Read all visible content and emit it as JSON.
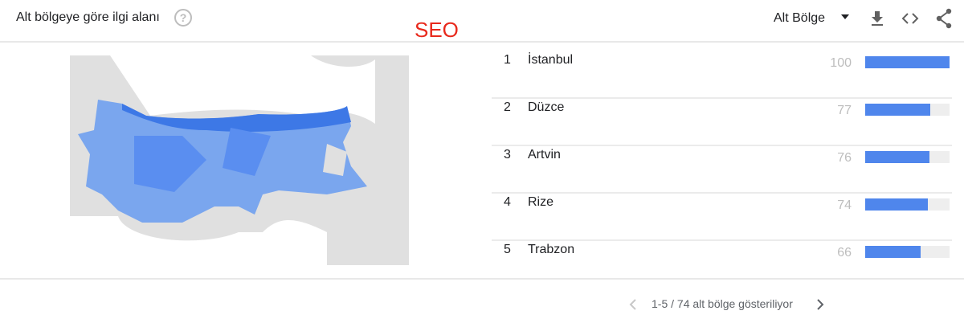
{
  "header": {
    "title": "Alt bölgeye göre ilgi alanı",
    "help_icon": "?",
    "term": "SEO",
    "region_select": "Alt Bölge",
    "icons": [
      "download-icon",
      "embed-code-icon",
      "share-icon"
    ]
  },
  "colors": {
    "accent": "#4f86ec",
    "term": "#e8291c"
  },
  "rows": [
    {
      "rank": "1",
      "name": "İstanbul",
      "value": 100
    },
    {
      "rank": "2",
      "name": "Düzce",
      "value": 77
    },
    {
      "rank": "3",
      "name": "Artvin",
      "value": 76
    },
    {
      "rank": "4",
      "name": "Rize",
      "value": 74
    },
    {
      "rank": "5",
      "name": "Trabzon",
      "value": 66
    }
  ],
  "pager": {
    "text": "1-5 / 74 alt bölge gösteriliyor"
  }
}
